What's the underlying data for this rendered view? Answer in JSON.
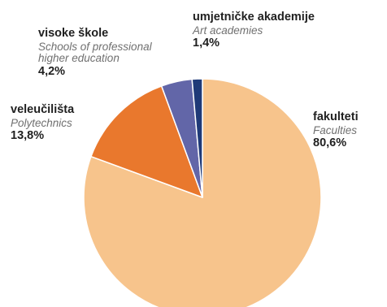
{
  "chart_data": {
    "type": "pie",
    "slices": [
      {
        "label_hr": "fakulteti",
        "label_en": "Faculties",
        "value": 80.6,
        "value_label": "80,6%",
        "color": "#f7c48c"
      },
      {
        "label_hr": "veleučilišta",
        "label_en": "Polytechnics",
        "value": 13.8,
        "value_label": "13,8%",
        "color": "#e9782d"
      },
      {
        "label_hr": "visoke škole",
        "label_en_lines": [
          "Schools of professional",
          "higher education"
        ],
        "value": 4.2,
        "value_label": "4,2%",
        "color": "#6266a8"
      },
      {
        "label_hr": "umjetničke akademije",
        "label_en": "Art academies",
        "value": 1.4,
        "value_label": "1,4%",
        "color": "#1f3a78"
      }
    ]
  }
}
